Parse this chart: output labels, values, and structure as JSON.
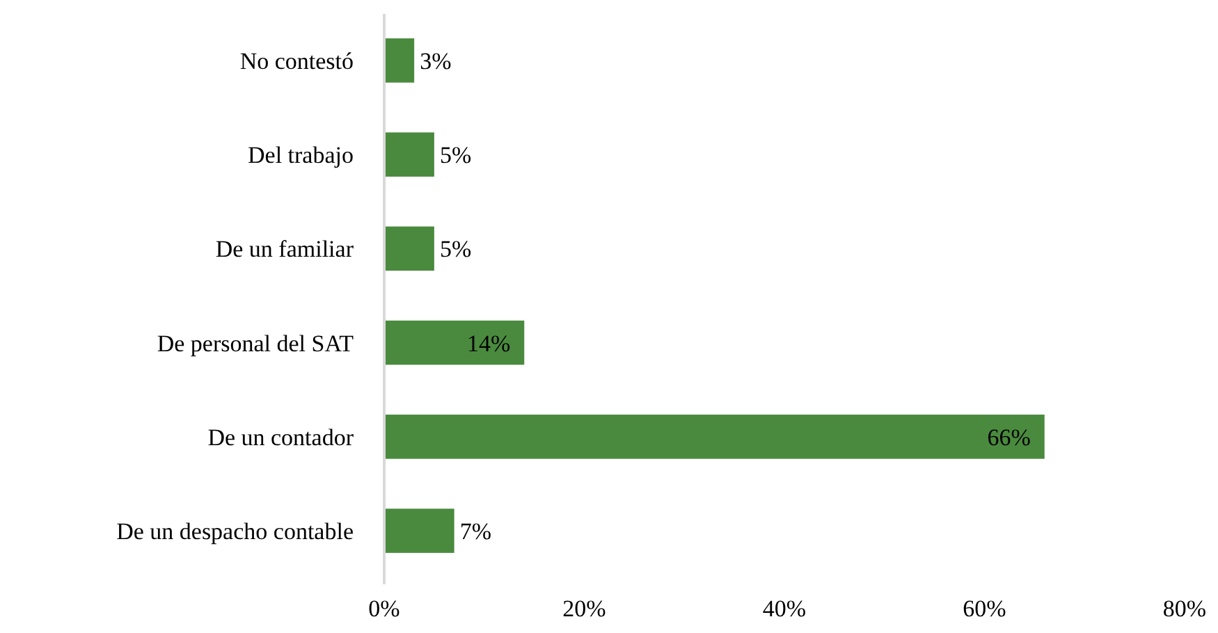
{
  "chart_data": {
    "type": "bar",
    "orientation": "horizontal",
    "categories": [
      "No contestó",
      "Del trabajo",
      "De un familiar",
      "De personal del SAT",
      "De un contador",
      "De un despacho contable"
    ],
    "values": [
      3,
      5,
      5,
      14,
      66,
      7
    ],
    "value_labels": [
      "3%",
      "5%",
      "5%",
      "14%",
      "66%",
      "7%"
    ],
    "color": "#4a8a3e",
    "xlim": [
      0,
      80
    ],
    "xticks": [
      {
        "value": 0,
        "label": "0%"
      },
      {
        "value": 20,
        "label": "20%"
      },
      {
        "value": 40,
        "label": "40%"
      },
      {
        "value": 60,
        "label": "60%"
      },
      {
        "value": 80,
        "label": "80%"
      }
    ],
    "grid": false
  }
}
